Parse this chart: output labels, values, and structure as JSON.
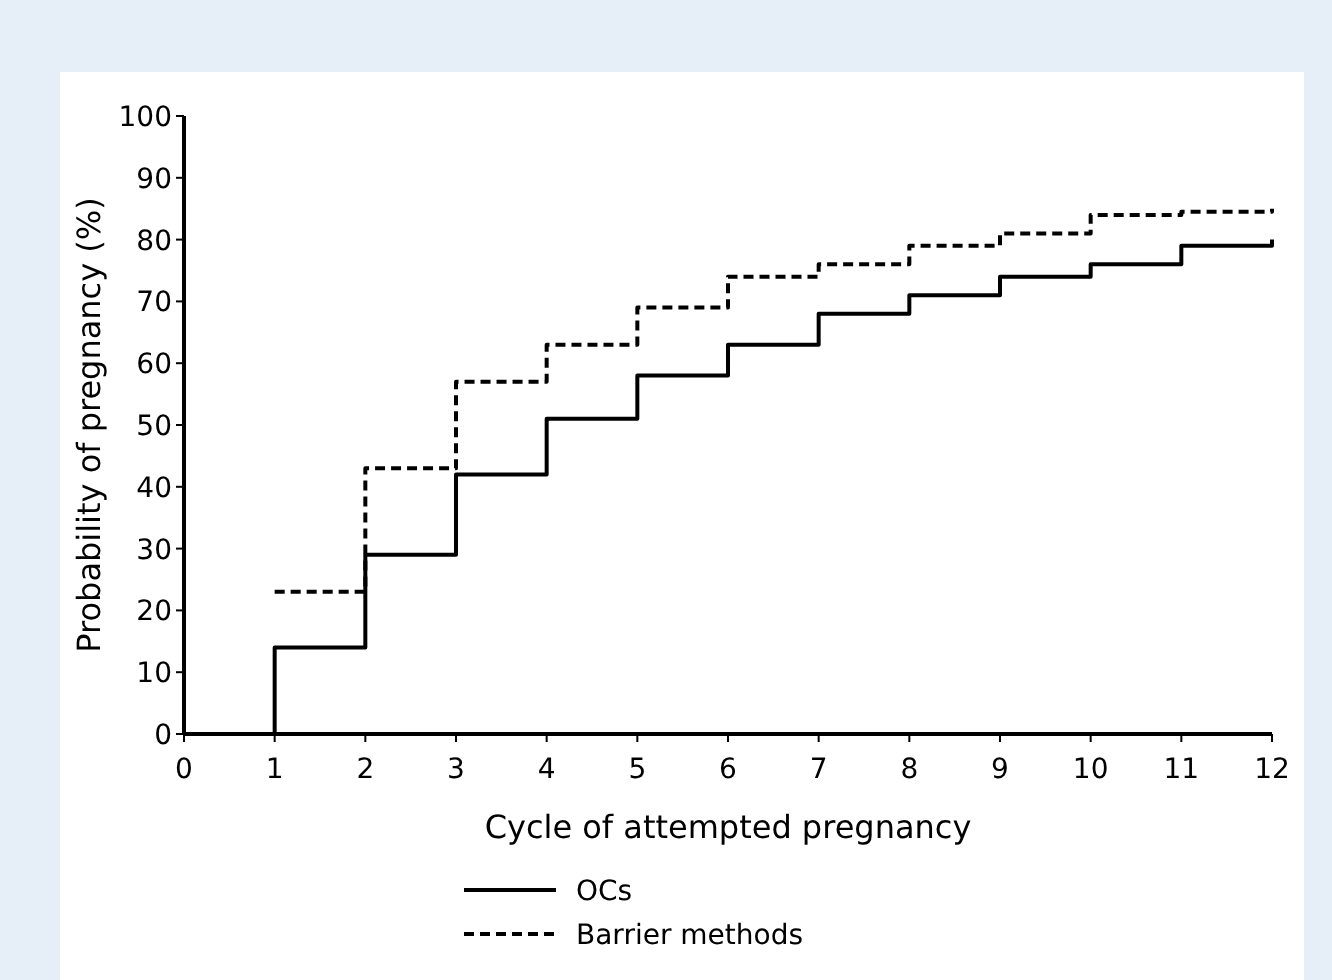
{
  "chart_data": {
    "type": "step",
    "xlabel": "Cycle of attempted pregnancy",
    "ylabel": "Probability of pregnancy (%)",
    "x": [
      0,
      1,
      2,
      3,
      4,
      5,
      6,
      7,
      8,
      9,
      10,
      11,
      12
    ],
    "series": [
      {
        "name": "OCs",
        "color": "#000000",
        "line_style": "solid",
        "values": [
          0,
          14,
          29,
          42,
          51,
          58,
          63,
          68,
          71,
          74,
          76,
          79,
          80
        ]
      },
      {
        "name": "Barrier methods",
        "color": "#000000",
        "line_style": "dashed",
        "values": [
          null,
          23,
          43,
          57,
          63,
          69,
          74,
          76,
          79,
          81,
          84,
          84.5,
          85
        ]
      }
    ],
    "xlim": [
      0,
      12
    ],
    "xticks": [
      0,
      1,
      2,
      3,
      4,
      5,
      6,
      7,
      8,
      9,
      10,
      11,
      12
    ],
    "ylim": [
      0,
      100
    ],
    "yticks": [
      0,
      10,
      20,
      30,
      40,
      50,
      60,
      70,
      80,
      90,
      100
    ],
    "grid": false,
    "legend": "bottom",
    "marker": "none"
  }
}
